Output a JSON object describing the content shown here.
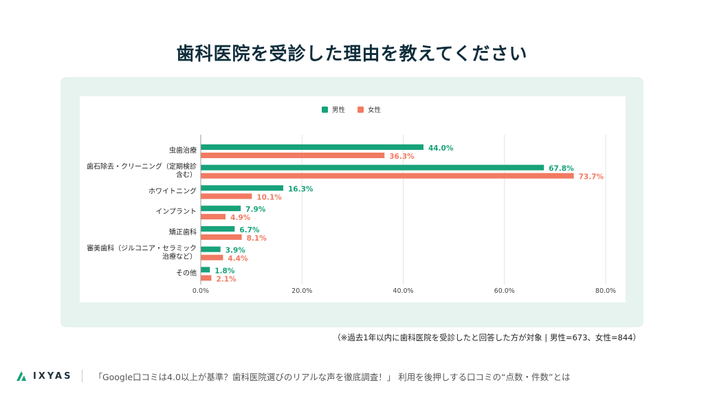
{
  "page": {
    "title": "歯科医院を受診した理由を教えてください",
    "note": "（※過去1年以内に歯科医院を受診したと回答した方が対象 | 男性=673、女性=844）",
    "footer": {
      "brand": "IXYAS",
      "caption": "「Google口コミは4.0以上が基準？歯科医院選びのリアルな声を徹底調査！」 利用を後押しする口コミの“点数・件数”とは"
    }
  },
  "chart_data": {
    "type": "bar",
    "orientation": "horizontal",
    "categories": [
      [
        "虫歯治療"
      ],
      [
        "歯石除去・クリーニング（定期検診",
        "含む）"
      ],
      [
        "ホワイトニング"
      ],
      [
        "インプラント"
      ],
      [
        "矯正歯科"
      ],
      [
        "審美歯科（ジルコニア・セラミック",
        "治療など）"
      ],
      [
        "その他"
      ]
    ],
    "series": [
      {
        "name": "男性",
        "color": "#17a27a",
        "values": [
          44.0,
          67.8,
          16.3,
          7.9,
          6.7,
          3.9,
          1.8
        ]
      },
      {
        "name": "女性",
        "color": "#f27a62",
        "values": [
          36.3,
          73.7,
          10.1,
          4.9,
          8.1,
          4.4,
          2.1
        ]
      }
    ],
    "xlim": [
      0,
      80
    ],
    "xticks": [
      "0.0%",
      "20.0%",
      "40.0%",
      "60.0%",
      "80.0%"
    ],
    "tick_values": [
      0,
      20,
      40,
      60,
      80
    ],
    "legend_position": "top",
    "grid": true,
    "label_format": "percent_1dp"
  }
}
